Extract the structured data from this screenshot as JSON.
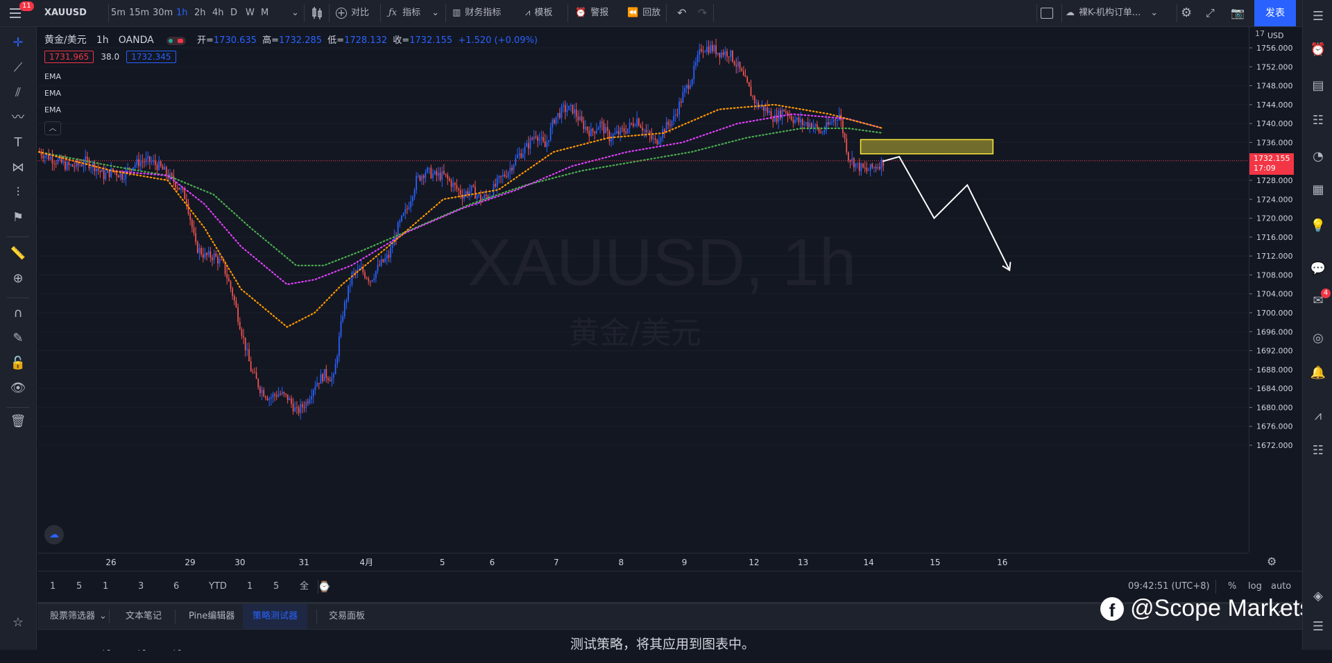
{
  "topbar": {
    "menu_badge": "11",
    "symbol": "XAUUSD",
    "intervals": [
      "5m",
      "15m",
      "30m",
      "1h",
      "2h",
      "4h",
      "D",
      "W",
      "M"
    ],
    "active_interval": "1h",
    "compare_label": "对比",
    "indicators_label": "指标",
    "financials_label": "财务指标",
    "templates_label": "模板",
    "alert_label": "警报",
    "replay_label": "回放",
    "layout_name": "裸K-机构订单...",
    "publish_label": "发表"
  },
  "legend": {
    "title": "黄金/美元",
    "interval": "1h",
    "source": "OANDA",
    "open_label": "开=",
    "open": "1730.635",
    "high_label": "高=",
    "high": "1732.285",
    "low_label": "低=",
    "low": "1728.132",
    "close_label": "收=",
    "close": "1732.155",
    "change": "+1.520 (+0.09%)",
    "bid": "1731.965",
    "spread": "38.0",
    "ask": "1732.345",
    "indicators": [
      "EMA",
      "EMA",
      "EMA"
    ]
  },
  "watermark": {
    "symbol": "XAUUSD, 1h",
    "name": "黄金/美元"
  },
  "price_axis": {
    "currency": "USD",
    "top_partial": "17",
    "ticks": [
      "1756.000",
      "1752.000",
      "1748.000",
      "1744.000",
      "1740.000",
      "1736.000",
      "1732.000",
      "1728.000",
      "1724.000",
      "1720.000",
      "1716.000",
      "1712.000",
      "1708.000",
      "1704.000",
      "1700.000",
      "1696.000",
      "1692.000",
      "1688.000",
      "1684.000",
      "1680.000",
      "1676.000",
      "1672.000"
    ],
    "current_price": "1732.155",
    "countdown": "17:09"
  },
  "time_axis": {
    "labels": [
      "26",
      "29",
      "30",
      "31",
      "4月",
      "5",
      "6",
      "7",
      "8",
      "9",
      "12",
      "13",
      "14",
      "15",
      "16"
    ]
  },
  "range_bar": {
    "ranges": [
      "1天",
      "5天",
      "1个月",
      "3个月",
      "6个月",
      "YTD",
      "1年",
      "5年",
      "全部"
    ],
    "clock": "09:42:51 (UTC+8)",
    "percent": "%",
    "log": "log",
    "auto": "auto"
  },
  "bottom_tabs": {
    "tabs": [
      "股票筛选器",
      "文本笔记",
      "Pine编辑器",
      "策略测试器",
      "交易面板"
    ],
    "active": "策略测试器"
  },
  "bottom_panel": {
    "message": "测试策略，将其应用到图表中。"
  },
  "right_toolbar": {
    "chat_badge": "4"
  },
  "branding": {
    "text": "@Scope Markets"
  },
  "colors": {
    "background": "#131722",
    "up_candle": "#2962ff",
    "down_candle": "#ef5350",
    "ema_fast": "#ff9800",
    "ema_mid": "#e040fb",
    "ema_slow": "#4caf50",
    "accent": "#2962ff",
    "zone": "#ffeb3b"
  },
  "chart_data": {
    "type": "candlestick",
    "symbol": "XAUUSD",
    "interval": "1h",
    "ylim": [
      1670,
      1758
    ],
    "current_price": 1732.155,
    "path_points": [
      [
        0,
        1734
      ],
      [
        5,
        1733
      ],
      [
        10,
        1732
      ],
      [
        15,
        1731
      ],
      [
        20,
        1731
      ],
      [
        25,
        1732
      ],
      [
        30,
        1731
      ],
      [
        35,
        1729
      ],
      [
        40,
        1730
      ],
      [
        45,
        1729
      ],
      [
        50,
        1731
      ],
      [
        55,
        1732
      ],
      [
        60,
        1732
      ],
      [
        65,
        1731
      ],
      [
        70,
        1729
      ],
      [
        75,
        1727
      ],
      [
        80,
        1724
      ],
      [
        85,
        1714
      ],
      [
        90,
        1712
      ],
      [
        95,
        1712
      ],
      [
        100,
        1710
      ],
      [
        105,
        1704
      ],
      [
        110,
        1696
      ],
      [
        115,
        1688
      ],
      [
        120,
        1684
      ],
      [
        125,
        1682
      ],
      [
        130,
        1683
      ],
      [
        135,
        1682
      ],
      [
        140,
        1679
      ],
      [
        145,
        1681
      ],
      [
        150,
        1685
      ],
      [
        155,
        1687
      ],
      [
        160,
        1686
      ],
      [
        165,
        1700
      ],
      [
        170,
        1708
      ],
      [
        175,
        1709
      ],
      [
        180,
        1707
      ],
      [
        185,
        1710
      ],
      [
        190,
        1712
      ],
      [
        195,
        1718
      ],
      [
        200,
        1722
      ],
      [
        205,
        1728
      ],
      [
        210,
        1730
      ],
      [
        215,
        1729
      ],
      [
        220,
        1729
      ],
      [
        225,
        1727
      ],
      [
        230,
        1725
      ],
      [
        235,
        1726
      ],
      [
        240,
        1724
      ],
      [
        245,
        1725
      ],
      [
        250,
        1728
      ],
      [
        255,
        1730
      ],
      [
        260,
        1733
      ],
      [
        265,
        1735
      ],
      [
        270,
        1738
      ],
      [
        275,
        1735
      ],
      [
        280,
        1741
      ],
      [
        285,
        1743
      ],
      [
        290,
        1743
      ],
      [
        295,
        1740
      ],
      [
        300,
        1738
      ],
      [
        305,
        1740
      ],
      [
        310,
        1737
      ],
      [
        315,
        1738
      ],
      [
        320,
        1739
      ],
      [
        325,
        1741
      ],
      [
        330,
        1738
      ],
      [
        335,
        1736
      ],
      [
        340,
        1739
      ],
      [
        345,
        1741
      ],
      [
        350,
        1746
      ],
      [
        355,
        1750
      ],
      [
        360,
        1756
      ],
      [
        365,
        1756
      ],
      [
        370,
        1755
      ],
      [
        375,
        1755
      ],
      [
        380,
        1752
      ],
      [
        385,
        1748
      ],
      [
        390,
        1744
      ],
      [
        395,
        1743
      ],
      [
        400,
        1741
      ],
      [
        405,
        1743
      ],
      [
        410,
        1741
      ],
      [
        415,
        1740
      ],
      [
        420,
        1740
      ],
      [
        425,
        1738
      ],
      [
        430,
        1740
      ],
      [
        435,
        1742
      ],
      [
        440,
        1733
      ],
      [
        445,
        1731
      ],
      [
        450,
        1730
      ],
      [
        455,
        1731
      ],
      [
        459,
        1732
      ]
    ],
    "ema_fast_points": [
      [
        0,
        1734
      ],
      [
        40,
        1730
      ],
      [
        70,
        1728
      ],
      [
        90,
        1718
      ],
      [
        110,
        1705
      ],
      [
        135,
        1697
      ],
      [
        150,
        1700
      ],
      [
        165,
        1706
      ],
      [
        190,
        1714
      ],
      [
        220,
        1724
      ],
      [
        250,
        1726
      ],
      [
        280,
        1734
      ],
      [
        310,
        1737
      ],
      [
        340,
        1738
      ],
      [
        370,
        1743
      ],
      [
        400,
        1744
      ],
      [
        430,
        1742
      ],
      [
        459,
        1739
      ]
    ],
    "ema_mid_points": [
      [
        0,
        1734
      ],
      [
        40,
        1730
      ],
      [
        70,
        1729
      ],
      [
        90,
        1723
      ],
      [
        110,
        1714
      ],
      [
        135,
        1706
      ],
      [
        150,
        1707
      ],
      [
        170,
        1710
      ],
      [
        200,
        1717
      ],
      [
        230,
        1722
      ],
      [
        260,
        1726
      ],
      [
        290,
        1731
      ],
      [
        320,
        1734
      ],
      [
        350,
        1736
      ],
      [
        380,
        1740
      ],
      [
        410,
        1742
      ],
      [
        440,
        1741
      ],
      [
        459,
        1739
      ]
    ],
    "ema_slow_points": [
      [
        0,
        1734
      ],
      [
        40,
        1731
      ],
      [
        70,
        1729
      ],
      [
        95,
        1725
      ],
      [
        115,
        1718
      ],
      [
        140,
        1710
      ],
      [
        155,
        1710
      ],
      [
        175,
        1713
      ],
      [
        205,
        1718
      ],
      [
        235,
        1723
      ],
      [
        265,
        1727
      ],
      [
        295,
        1730
      ],
      [
        325,
        1732
      ],
      [
        355,
        1734
      ],
      [
        385,
        1737
      ],
      [
        415,
        1739
      ],
      [
        440,
        1739
      ],
      [
        459,
        1738
      ]
    ],
    "zone": {
      "x_from": 447,
      "x_to": 519,
      "y_from": 1733.6,
      "y_to": 1736.6
    },
    "projection": [
      [
        459,
        1732
      ],
      [
        468,
        1733
      ],
      [
        487,
        1720
      ],
      [
        505,
        1727
      ],
      [
        528,
        1709
      ]
    ]
  }
}
